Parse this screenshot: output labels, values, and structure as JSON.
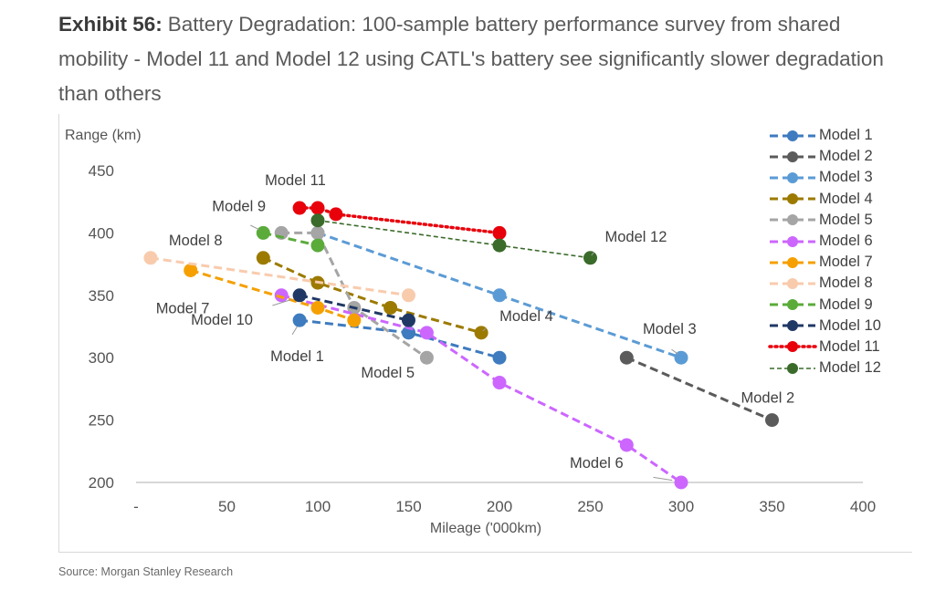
{
  "header": {
    "label": "Exhibit 56:",
    "title": "Battery Degradation: 100-sample battery performance survey from shared mobility - Model 11 and Model 12 using CATL's battery see significantly slower degradation than others"
  },
  "source": "Source: Morgan Stanley Research",
  "chart_data": {
    "type": "line",
    "title": "",
    "xlabel": "Mileage ('000km)",
    "ylabel": "Range (km)",
    "xlim": [
      0,
      400
    ],
    "ylim": [
      200,
      450
    ],
    "xticks": [
      0,
      50,
      100,
      150,
      200,
      250,
      300,
      350,
      400
    ],
    "xtick_labels": [
      "-",
      "50",
      "100",
      "150",
      "200",
      "250",
      "300",
      "350",
      "400"
    ],
    "yticks": [
      200,
      250,
      300,
      350,
      400,
      450
    ],
    "ytick_labels": [
      "200",
      "250",
      "300",
      "350",
      "400",
      "450"
    ],
    "grid": false,
    "legend_position": "right",
    "series": [
      {
        "name": "Model 1",
        "color": "#3e7bbf",
        "dash": "dashed",
        "points": [
          [
            90,
            330
          ],
          [
            150,
            320
          ],
          [
            200,
            300
          ]
        ]
      },
      {
        "name": "Model 2",
        "color": "#5b5b5b",
        "dash": "dashed",
        "points": [
          [
            270,
            300
          ],
          [
            350,
            250
          ]
        ]
      },
      {
        "name": "Model 3",
        "color": "#5b9bd5",
        "dash": "dashed",
        "points": [
          [
            100,
            400
          ],
          [
            200,
            350
          ],
          [
            300,
            300
          ]
        ]
      },
      {
        "name": "Model 4",
        "color": "#9c7a00",
        "dash": "dashed",
        "points": [
          [
            70,
            380
          ],
          [
            100,
            360
          ],
          [
            140,
            340
          ],
          [
            190,
            320
          ]
        ]
      },
      {
        "name": "Model 5",
        "color": "#a5a5a5",
        "dash": "dashed",
        "points": [
          [
            80,
            400
          ],
          [
            100,
            400
          ],
          [
            120,
            340
          ],
          [
            160,
            300
          ]
        ]
      },
      {
        "name": "Model 6",
        "color": "#cc66ff",
        "dash": "dashed",
        "points": [
          [
            80,
            350
          ],
          [
            160,
            320
          ],
          [
            200,
            280
          ],
          [
            270,
            230
          ],
          [
            300,
            200
          ]
        ]
      },
      {
        "name": "Model 7",
        "color": "#f5a000",
        "dash": "dashed",
        "points": [
          [
            30,
            370
          ],
          [
            100,
            340
          ],
          [
            120,
            330
          ]
        ]
      },
      {
        "name": "Model 8",
        "color": "#f8cbad",
        "dash": "dashed",
        "points": [
          [
            8,
            380
          ],
          [
            150,
            350
          ]
        ]
      },
      {
        "name": "Model 9",
        "color": "#5aab3a",
        "dash": "dashed",
        "points": [
          [
            70,
            400
          ],
          [
            100,
            390
          ]
        ]
      },
      {
        "name": "Model 10",
        "color": "#203864",
        "dash": "dashed",
        "points": [
          [
            90,
            350
          ],
          [
            150,
            330
          ]
        ]
      },
      {
        "name": "Model 11",
        "color": "#e8000b",
        "dash": "dotted",
        "points": [
          [
            90,
            420
          ],
          [
            100,
            420
          ],
          [
            110,
            415
          ],
          [
            200,
            400
          ]
        ]
      },
      {
        "name": "Model 12",
        "color": "#3a6b2a",
        "dash": "dashed-light",
        "points": [
          [
            100,
            410
          ],
          [
            200,
            390
          ],
          [
            250,
            380
          ]
        ]
      }
    ],
    "annotations": [
      {
        "text": "Model 11",
        "series": "Model 11"
      },
      {
        "text": "Model 9",
        "series": "Model 9"
      },
      {
        "text": "Model 8",
        "series": "Model 8"
      },
      {
        "text": "Model 12",
        "series": "Model 12"
      },
      {
        "text": "Model 7",
        "series": "Model 7"
      },
      {
        "text": "Model 10",
        "series": "Model 10"
      },
      {
        "text": "Model 4",
        "series": "Model 4"
      },
      {
        "text": "Model 3",
        "series": "Model 3"
      },
      {
        "text": "Model 1",
        "series": "Model 1"
      },
      {
        "text": "Model 5",
        "series": "Model 5"
      },
      {
        "text": "Model 2",
        "series": "Model 2"
      },
      {
        "text": "Model 6",
        "series": "Model 6"
      }
    ]
  }
}
